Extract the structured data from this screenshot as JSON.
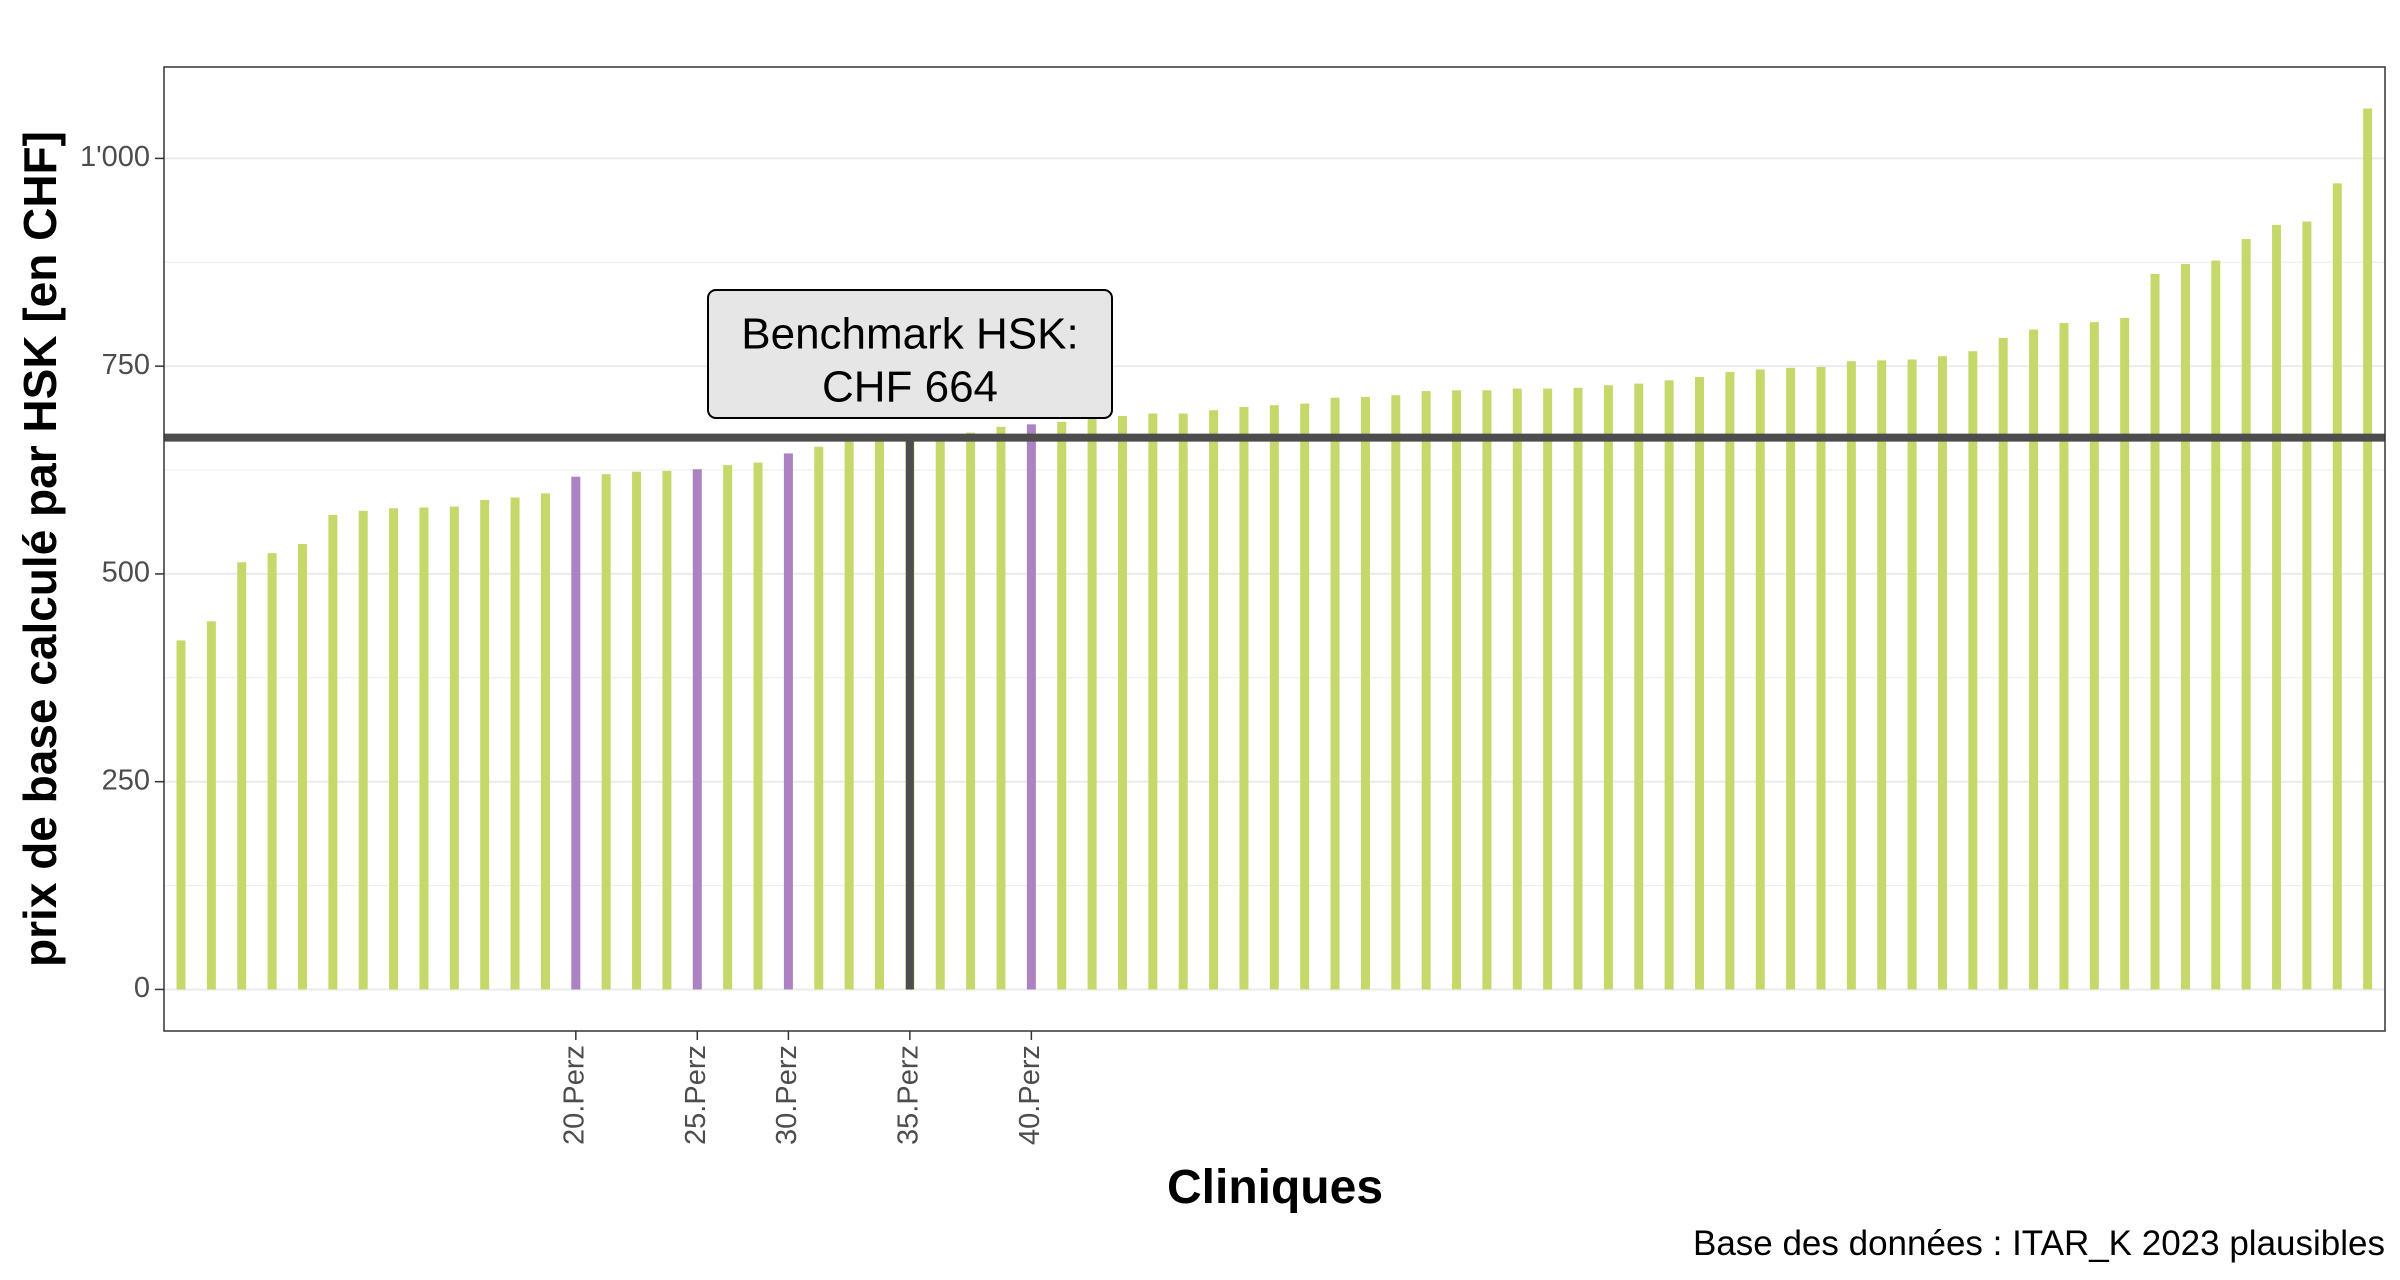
{
  "chart_data": {
    "type": "bar",
    "title": "",
    "xlabel": "Cliniques",
    "ylabel": "prix de base calculé par HSK [en CHF]",
    "caption": "Base des données : ITAR_K 2023 plausibles",
    "ylim": [
      -50,
      1110
    ],
    "yticks": [
      0,
      250,
      500,
      750,
      1000
    ],
    "ytick_labels": [
      "0",
      "250",
      "500",
      "750",
      "1'000"
    ],
    "grid": true,
    "values": [
      420,
      443,
      514,
      525,
      536,
      571,
      576,
      579,
      580,
      581,
      589,
      592,
      597,
      617,
      620,
      623,
      624,
      626,
      631,
      634,
      645,
      653,
      660,
      662,
      664,
      665,
      670,
      677,
      680,
      683,
      688,
      690,
      693,
      693,
      697,
      701,
      703,
      705,
      712,
      713,
      715,
      720,
      721,
      721,
      723,
      723,
      724,
      727,
      729,
      733,
      737,
      743,
      746,
      748,
      749,
      756,
      757,
      758,
      762,
      768,
      784,
      794,
      802,
      803,
      808,
      861,
      873,
      877,
      903,
      920,
      924,
      970,
      1060
    ],
    "highlighted_indices": [
      13,
      17,
      20,
      28
    ],
    "percentile_labels": [
      {
        "index": 13,
        "label": "20.Perz"
      },
      {
        "index": 17,
        "label": "25.Perz"
      },
      {
        "index": 20,
        "label": "30.Perz"
      },
      {
        "index": 24,
        "label": "35.Perz"
      },
      {
        "index": 28,
        "label": "40.Perz"
      }
    ],
    "benchmark": {
      "value": 664,
      "index": 24,
      "label_line1": "Benchmark HSK:",
      "label_line2": "CHF 664"
    },
    "colors": {
      "bar": "#c5d96a",
      "highlight": "#ad82c2",
      "benchmark_line": "#4d4d4d",
      "label_fill": "#e6e6e6",
      "grid": "#ebebeb",
      "panel_border": "#333333"
    }
  }
}
